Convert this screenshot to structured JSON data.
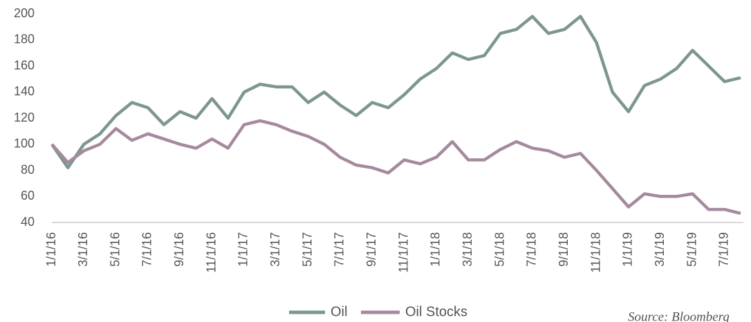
{
  "chart_data": {
    "type": "line",
    "x": [
      "1/1/16",
      null,
      "3/1/16",
      null,
      "5/1/16",
      null,
      "7/1/16",
      null,
      "9/1/16",
      null,
      "11/1/16",
      null,
      "1/1/17",
      null,
      "3/1/17",
      null,
      "5/1/17",
      null,
      "7/1/17",
      null,
      "9/1/17",
      null,
      "11/1/17",
      null,
      "1/1/18",
      null,
      "3/1/18",
      null,
      "5/1/18",
      null,
      "7/1/18",
      null,
      "9/1/18",
      null,
      "11/1/18",
      null,
      "1/1/19",
      null,
      "3/1/19",
      null,
      "5/1/19",
      null,
      "7/1/19",
      null
    ],
    "series": [
      {
        "name": "Oil",
        "color": "#7d9690",
        "values": [
          100,
          82,
          100,
          108,
          122,
          132,
          128,
          115,
          125,
          120,
          135,
          120,
          140,
          146,
          144,
          144,
          132,
          140,
          130,
          122,
          132,
          128,
          138,
          150,
          158,
          170,
          165,
          168,
          185,
          188,
          198,
          185,
          188,
          198,
          178,
          140,
          125,
          145,
          150,
          158,
          172,
          160,
          148,
          151
        ]
      },
      {
        "name": "Oil Stocks",
        "color": "#a58a9e",
        "values": [
          100,
          86,
          95,
          100,
          112,
          103,
          108,
          104,
          100,
          97,
          104,
          97,
          115,
          118,
          115,
          110,
          106,
          100,
          90,
          84,
          82,
          78,
          88,
          85,
          90,
          102,
          88,
          88,
          96,
          102,
          97,
          95,
          90,
          93,
          80,
          66,
          52,
          62,
          60,
          60,
          62,
          50,
          50,
          47
        ]
      }
    ],
    "ylim": [
      40,
      200
    ],
    "yticks": [
      40,
      60,
      80,
      100,
      120,
      140,
      160,
      180,
      200
    ],
    "legend": "bottom",
    "source": "Source: Bloomberg"
  }
}
